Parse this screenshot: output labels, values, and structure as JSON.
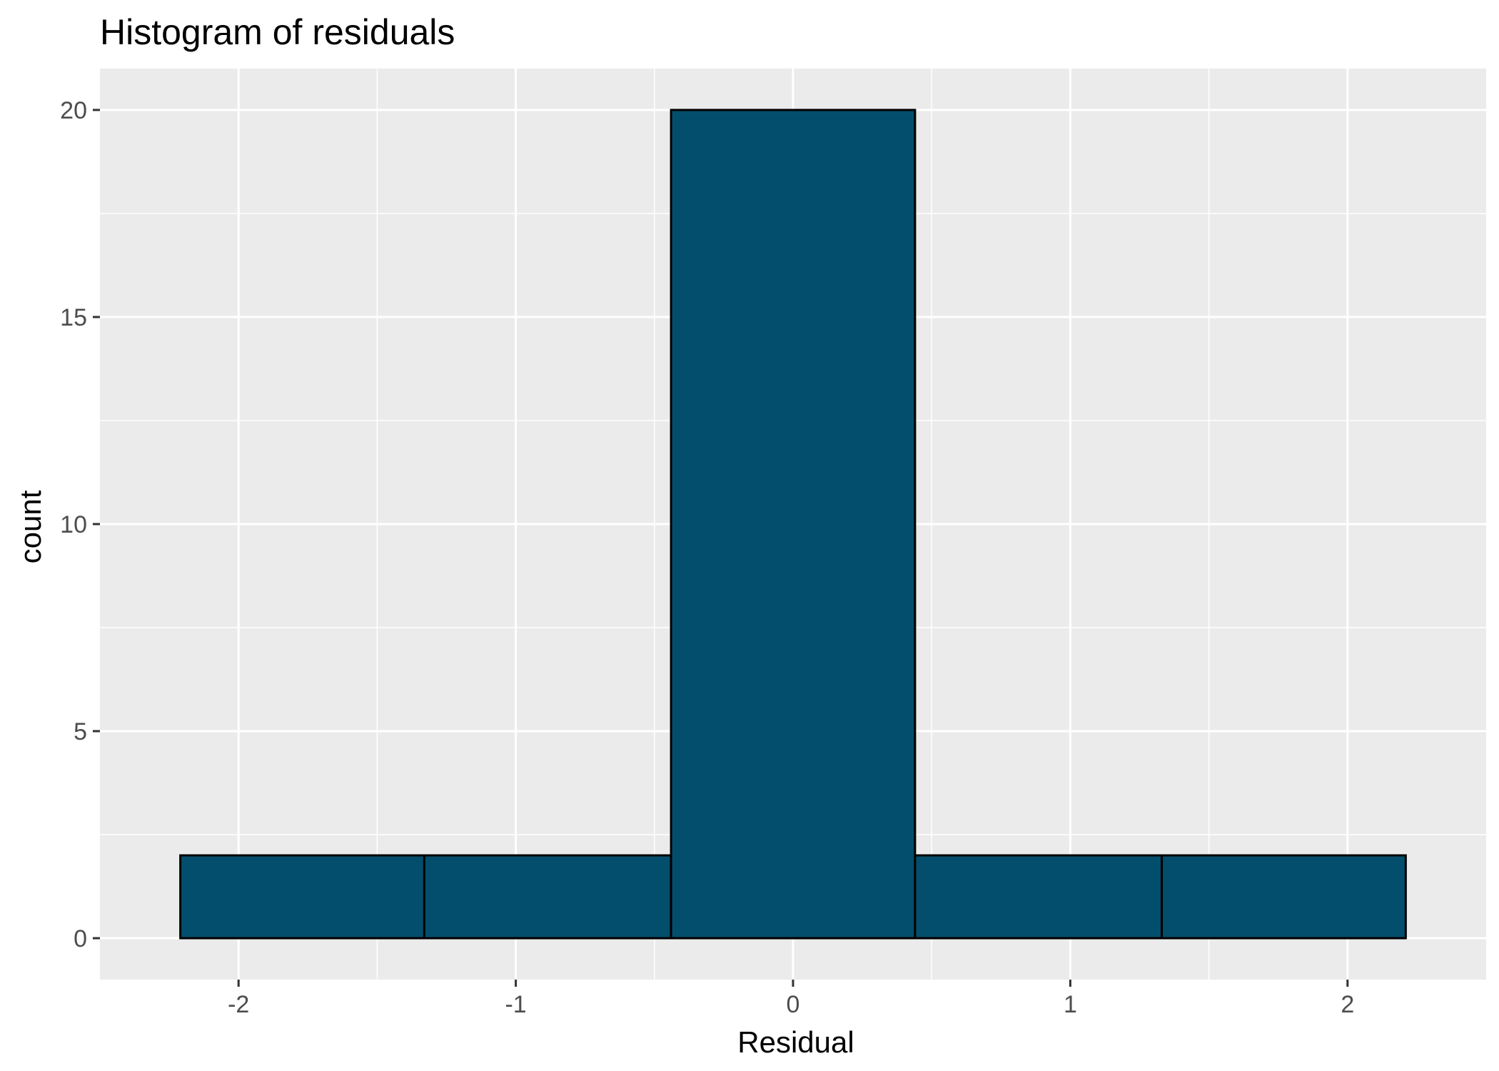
{
  "chart_data": {
    "type": "bar",
    "title": "Histogram of residuals",
    "xlabel": "Residual",
    "ylabel": "count",
    "bins": [
      {
        "x0": -2.21,
        "x1": -1.33,
        "count": 2
      },
      {
        "x0": -1.33,
        "x1": -0.44,
        "count": 2
      },
      {
        "x0": -0.44,
        "x1": 0.44,
        "count": 20
      },
      {
        "x0": 0.44,
        "x1": 1.33,
        "count": 2
      },
      {
        "x0": 1.33,
        "x1": 2.21,
        "count": 2
      }
    ],
    "xlim": [
      -2.5,
      2.5
    ],
    "ylim": [
      -1,
      21
    ],
    "x_ticks": [
      -2,
      -1,
      0,
      1,
      2
    ],
    "x_tick_labels": [
      "-2",
      "-1",
      "0",
      "1",
      "2"
    ],
    "y_ticks": [
      0,
      5,
      10,
      15,
      20
    ],
    "y_tick_labels": [
      "0",
      "5",
      "10",
      "15",
      "20"
    ],
    "grid": true,
    "colors": {
      "bar_fill": "#034E6C",
      "bar_stroke": "#000000",
      "panel_background": "#EBEBEB",
      "grid": "#FFFFFF"
    }
  }
}
